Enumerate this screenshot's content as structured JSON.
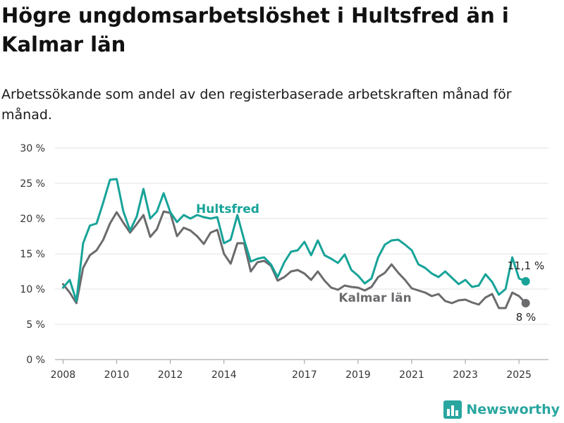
{
  "title": "Högre ungdomsarbetslöshet i Hultsfred än i Kalmar län",
  "subtitle": "Arbetssökande som andel av den registerbaserade arbetskraften månad för månad.",
  "brand": {
    "name": "Newsworthy",
    "icon": "bar-chart-logo-icon",
    "color": "#2aa6a0"
  },
  "chart_data": {
    "type": "line",
    "x_unit": "year",
    "xlim": [
      2007.7,
      2026.1
    ],
    "ylim": [
      0,
      30
    ],
    "y_ticks": [
      {
        "value": 0,
        "label": "0 %"
      },
      {
        "value": 5,
        "label": "5 %"
      },
      {
        "value": 10,
        "label": "10 %"
      },
      {
        "value": 15,
        "label": "15 %"
      },
      {
        "value": 20,
        "label": "20 %"
      },
      {
        "value": 25,
        "label": "25 %"
      },
      {
        "value": 30,
        "label": "30 %"
      }
    ],
    "x_ticks": [
      {
        "value": 2008,
        "label": "2008"
      },
      {
        "value": 2010,
        "label": "2010"
      },
      {
        "value": 2012,
        "label": "2012"
      },
      {
        "value": 2014,
        "label": "2014"
      },
      {
        "value": 2017,
        "label": "2017"
      },
      {
        "value": 2019,
        "label": "2019"
      },
      {
        "value": 2021,
        "label": "2021"
      },
      {
        "value": 2023,
        "label": "2023"
      },
      {
        "value": 2025,
        "label": "2025"
      }
    ],
    "grid": "horizontal",
    "series": [
      {
        "name": "Hultsfred",
        "color": "#17a398",
        "end_label": "11,1 %",
        "x": [
          2008.0,
          2008.25,
          2008.5,
          2008.75,
          2009.0,
          2009.25,
          2009.5,
          2009.75,
          2010.0,
          2010.25,
          2010.5,
          2010.75,
          2011.0,
          2011.25,
          2011.5,
          2011.75,
          2012.0,
          2012.25,
          2012.5,
          2012.75,
          2013.0,
          2013.25,
          2013.5,
          2013.75,
          2014.0,
          2014.25,
          2014.5,
          2014.75,
          2015.0,
          2015.25,
          2015.5,
          2015.75,
          2016.0,
          2016.25,
          2016.5,
          2016.75,
          2017.0,
          2017.25,
          2017.5,
          2017.75,
          2018.0,
          2018.25,
          2018.5,
          2018.75,
          2019.0,
          2019.25,
          2019.5,
          2019.75,
          2020.0,
          2020.25,
          2020.5,
          2020.75,
          2021.0,
          2021.25,
          2021.5,
          2021.75,
          2022.0,
          2022.25,
          2022.5,
          2022.75,
          2023.0,
          2023.25,
          2023.5,
          2023.75,
          2024.0,
          2024.25,
          2024.5,
          2024.75,
          2025.0,
          2025.25
        ],
        "y": [
          10.2,
          11.3,
          8.3,
          16.5,
          19.0,
          19.3,
          22.3,
          25.5,
          25.6,
          21.0,
          18.3,
          20.3,
          24.2,
          20.0,
          21.0,
          23.6,
          20.9,
          19.5,
          20.5,
          20.0,
          20.5,
          20.2,
          20.0,
          20.2,
          16.5,
          17.0,
          20.5,
          17.0,
          13.9,
          14.3,
          14.5,
          13.5,
          11.7,
          13.8,
          15.3,
          15.5,
          16.7,
          14.8,
          16.9,
          14.8,
          14.3,
          13.7,
          14.9,
          12.7,
          11.9,
          10.8,
          11.5,
          14.5,
          16.3,
          16.9,
          17.0,
          16.3,
          15.5,
          13.5,
          13.0,
          12.2,
          11.7,
          12.5,
          11.6,
          10.7,
          11.3,
          10.3,
          10.5,
          12.1,
          11.0,
          9.2,
          10.0,
          14.5,
          11.5,
          11.1
        ]
      },
      {
        "name": "Kalmar län",
        "color": "#6b6b6e",
        "end_label": "8 %",
        "x": [
          2008.0,
          2008.25,
          2008.5,
          2008.75,
          2009.0,
          2009.25,
          2009.5,
          2009.75,
          2010.0,
          2010.25,
          2010.5,
          2010.75,
          2011.0,
          2011.25,
          2011.5,
          2011.75,
          2012.0,
          2012.25,
          2012.5,
          2012.75,
          2013.0,
          2013.25,
          2013.5,
          2013.75,
          2014.0,
          2014.25,
          2014.5,
          2014.75,
          2015.0,
          2015.25,
          2015.5,
          2015.75,
          2016.0,
          2016.25,
          2016.5,
          2016.75,
          2017.0,
          2017.25,
          2017.5,
          2017.75,
          2018.0,
          2018.25,
          2018.5,
          2018.75,
          2019.0,
          2019.25,
          2019.5,
          2019.75,
          2020.0,
          2020.25,
          2020.5,
          2020.75,
          2021.0,
          2021.25,
          2021.5,
          2021.75,
          2022.0,
          2022.25,
          2022.5,
          2022.75,
          2023.0,
          2023.25,
          2023.5,
          2023.75,
          2024.0,
          2024.25,
          2024.5,
          2024.75,
          2025.0,
          2025.25
        ],
        "y": [
          10.7,
          9.5,
          8.0,
          13.0,
          14.8,
          15.5,
          17.0,
          19.3,
          20.9,
          19.4,
          18.0,
          19.2,
          20.5,
          17.4,
          18.5,
          21.0,
          20.8,
          17.5,
          18.7,
          18.3,
          17.5,
          16.4,
          18.0,
          18.4,
          15.0,
          13.6,
          16.5,
          16.5,
          12.5,
          13.8,
          14.0,
          13.3,
          11.2,
          11.7,
          12.5,
          12.7,
          12.2,
          11.3,
          12.5,
          11.2,
          10.2,
          9.9,
          10.5,
          10.3,
          10.2,
          9.8,
          10.3,
          11.7,
          12.3,
          13.5,
          12.3,
          11.3,
          10.1,
          9.8,
          9.5,
          9.0,
          9.3,
          8.3,
          8.0,
          8.4,
          8.5,
          8.1,
          7.8,
          8.8,
          9.3,
          7.3,
          7.3,
          9.5,
          9.0,
          8.0
        ]
      }
    ]
  }
}
